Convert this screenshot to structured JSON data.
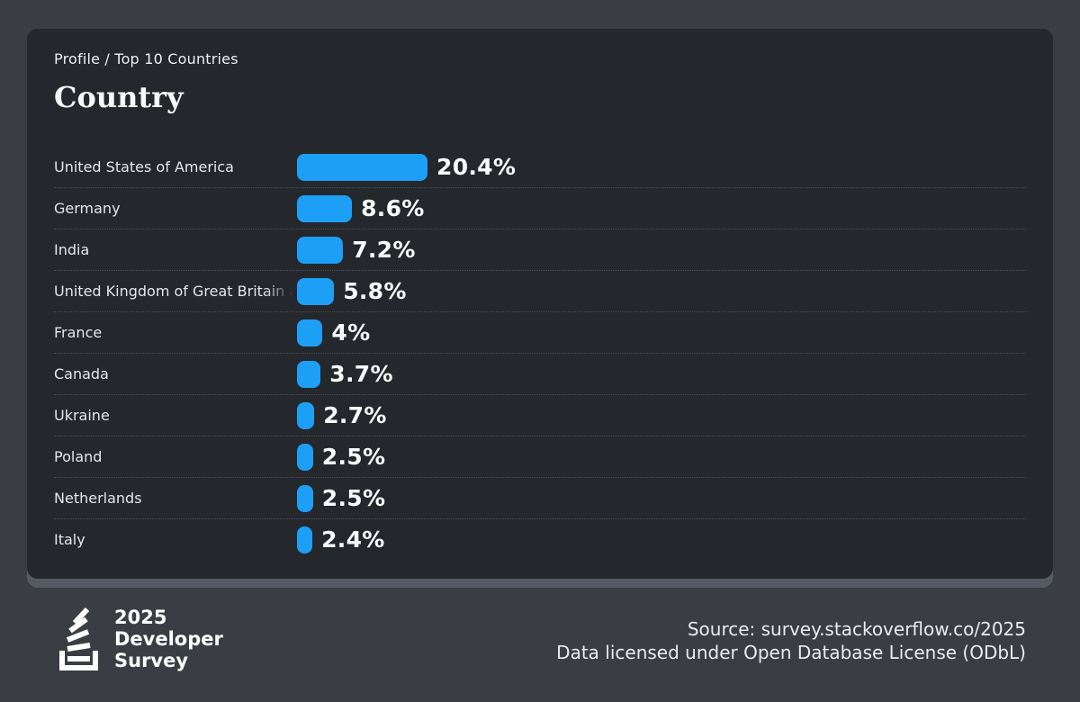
{
  "card": {
    "breadcrumb": "Profile / Top 10 Countries",
    "title": "Country"
  },
  "chart_data": {
    "type": "bar",
    "orientation": "horizontal",
    "title": "Country",
    "categories": [
      "United States of America",
      "Germany",
      "India",
      "United Kingdom of Great Britain and Northern Ireland",
      "France",
      "Canada",
      "Ukraine",
      "Poland",
      "Netherlands",
      "Italy"
    ],
    "values": [
      20.4,
      8.6,
      7.2,
      5.8,
      4,
      3.7,
      2.7,
      2.5,
      2.5,
      2.4
    ],
    "value_labels": [
      "20.4%",
      "8.6%",
      "7.2%",
      "5.8%",
      "4%",
      "3.7%",
      "2.7%",
      "2.5%",
      "2.5%",
      "2.4%"
    ],
    "unit": "%",
    "scale_max": 20.4,
    "bar_color": "#1e9ff6",
    "grid": "dotted row separators",
    "legend": "none"
  },
  "footer": {
    "logo_year": "2025",
    "logo_line2": "Developer",
    "logo_line3": "Survey",
    "source_line1": "Source: survey.stackoverflow.co/2025",
    "source_line2": "Data licensed under Open Database License (ODbL)"
  },
  "colors": {
    "background": "#3a3e44",
    "card": "#24272b",
    "card_shadow": "#555a62",
    "bar": "#1e9ff6",
    "separator": "#4a4e54"
  }
}
